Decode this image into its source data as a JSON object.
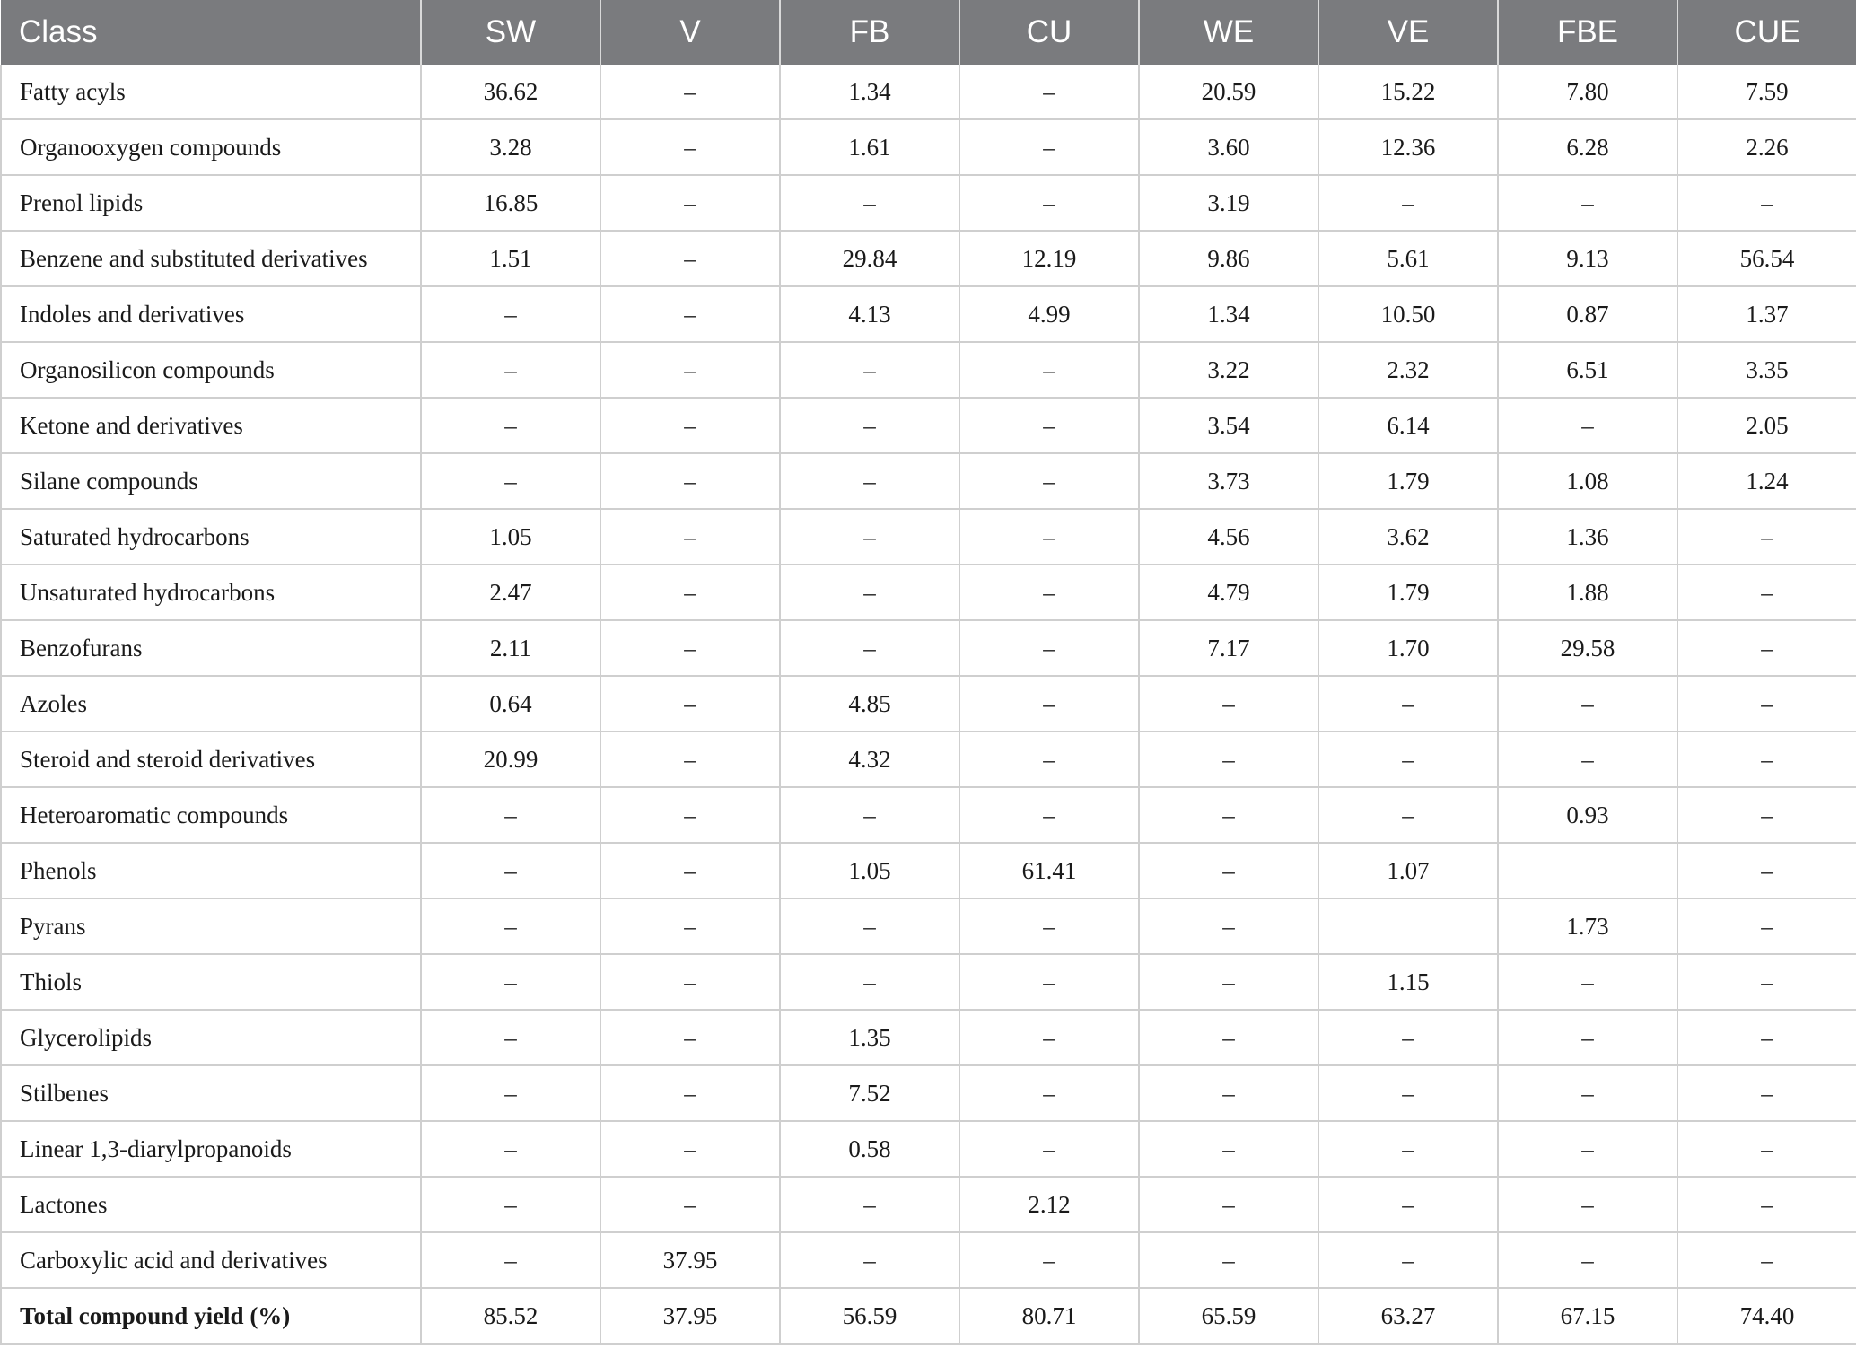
{
  "table": {
    "headers": [
      "Class",
      "SW",
      "V",
      "FB",
      "CU",
      "WE",
      "VE",
      "FBE",
      "CUE"
    ],
    "rows": [
      [
        "Fatty acyls",
        "36.62",
        "–",
        "1.34",
        "–",
        "20.59",
        "15.22",
        "7.80",
        "7.59"
      ],
      [
        "Organooxygen compounds",
        "3.28",
        "–",
        "1.61",
        "–",
        "3.60",
        "12.36",
        "6.28",
        "2.26"
      ],
      [
        "Prenol lipids",
        "16.85",
        "–",
        "–",
        "–",
        "3.19",
        "–",
        "–",
        "–"
      ],
      [
        "Benzene and substituted derivatives",
        "1.51",
        "–",
        "29.84",
        "12.19",
        "9.86",
        "5.61",
        "9.13",
        "56.54"
      ],
      [
        "Indoles and derivatives",
        "–",
        "–",
        "4.13",
        "4.99",
        "1.34",
        "10.50",
        "0.87",
        "1.37"
      ],
      [
        "Organosilicon compounds",
        "–",
        "–",
        "–",
        "–",
        "3.22",
        "2.32",
        "6.51",
        "3.35"
      ],
      [
        "Ketone and derivatives",
        "–",
        "–",
        "–",
        "–",
        "3.54",
        "6.14",
        "–",
        "2.05"
      ],
      [
        "Silane compounds",
        "–",
        "–",
        "–",
        "–",
        "3.73",
        "1.79",
        "1.08",
        "1.24"
      ],
      [
        "Saturated hydrocarbons",
        "1.05",
        "–",
        "–",
        "–",
        "4.56",
        "3.62",
        "1.36",
        "–"
      ],
      [
        "Unsaturated hydrocarbons",
        "2.47",
        "–",
        "–",
        "–",
        "4.79",
        "1.79",
        "1.88",
        "–"
      ],
      [
        "Benzofurans",
        "2.11",
        "–",
        "–",
        "–",
        "7.17",
        "1.70",
        "29.58",
        "–"
      ],
      [
        "Azoles",
        "0.64",
        "–",
        "4.85",
        "–",
        "–",
        "–",
        "–",
        "–"
      ],
      [
        "Steroid and steroid derivatives",
        "20.99",
        "–",
        "4.32",
        "–",
        "–",
        "–",
        "–",
        "–"
      ],
      [
        "Heteroaromatic compounds",
        "–",
        "–",
        "–",
        "–",
        "–",
        "–",
        "0.93",
        "–"
      ],
      [
        "Phenols",
        "–",
        "–",
        "1.05",
        "61.41",
        "–",
        "1.07",
        "",
        "–"
      ],
      [
        "Pyrans",
        "–",
        "–",
        "–",
        "–",
        "–",
        "",
        "1.73",
        "–"
      ],
      [
        "Thiols",
        "–",
        "–",
        "–",
        "–",
        "–",
        "1.15",
        "–",
        "–"
      ],
      [
        "Glycerolipids",
        "–",
        "–",
        "1.35",
        "–",
        "–",
        "–",
        "–",
        "–"
      ],
      [
        "Stilbenes",
        "–",
        "–",
        "7.52",
        "–",
        "–",
        "–",
        "–",
        "–"
      ],
      [
        "Linear 1,3-diarylpropanoids",
        "–",
        "–",
        "0.58",
        "–",
        "–",
        "–",
        "–",
        "–"
      ],
      [
        "Lactones",
        "–",
        "–",
        "–",
        "2.12",
        "–",
        "–",
        "–",
        "–"
      ],
      [
        "Carboxylic acid and derivatives",
        "–",
        "37.95",
        "–",
        "–",
        "–",
        "–",
        "–",
        "–"
      ]
    ],
    "total": [
      "Total compound yield (%)",
      "85.52",
      "37.95",
      "56.59",
      "80.71",
      "65.59",
      "63.27",
      "67.15",
      "74.40"
    ]
  }
}
